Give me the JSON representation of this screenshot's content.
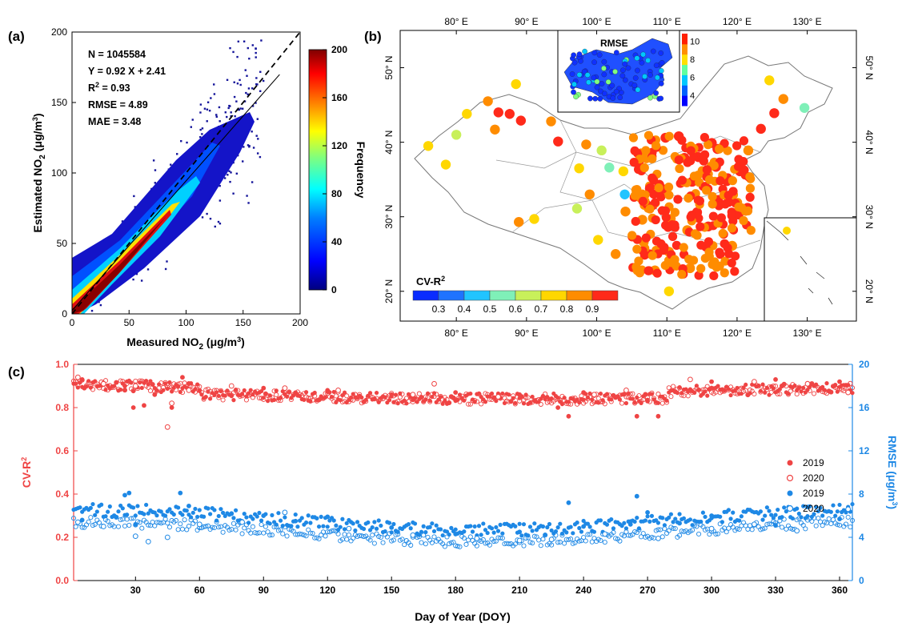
{
  "chart_data": [
    {
      "panel": "(a)",
      "type": "heatmap",
      "xlabel": "Measured NO2 (μg/m3)",
      "ylabel": "Estimated NO2 (μg/m3)",
      "xlim": [
        0,
        200
      ],
      "ylim": [
        0,
        200
      ],
      "xticks": [
        "0",
        "50",
        "100",
        "150",
        "200"
      ],
      "yticks": [
        "0",
        "50",
        "100",
        "150",
        "200"
      ],
      "stats": [
        "N = 1045584",
        "Y = 0.92 X + 2.41",
        "R2 = 0.93",
        "RMSE = 4.89",
        "MAE = 3.48"
      ],
      "fit_line": {
        "slope": 0.92,
        "intercept": 2.41,
        "x_range": [
          0,
          182
        ]
      },
      "identity_line": {
        "slope": 1,
        "intercept": 0
      },
      "colorbar": {
        "label": "Frequency",
        "range": [
          0,
          200
        ],
        "ticks": [
          "0",
          "40",
          "80",
          "120",
          "160",
          "200"
        ],
        "colormap": [
          "#00007f",
          "#0000ff",
          "#007fff",
          "#00ffff",
          "#7fff7f",
          "#ffff00",
          "#ff7f00",
          "#ff0000",
          "#7f0000"
        ]
      }
    },
    {
      "panel": "(b)",
      "type": "scatter",
      "title": "CV-R2",
      "inset_title": "RMSE",
      "xticks": [
        "80° E",
        "90° E",
        "100° E",
        "110° E",
        "120° E",
        "130° E"
      ],
      "yticks": [
        "20° N",
        "30° N",
        "40° N",
        "50° N"
      ],
      "legend_ticks": [
        "0.3",
        "0.4",
        "0.5",
        "0.6",
        "0.7",
        "0.8",
        "0.9"
      ],
      "legend_colors": [
        "#0a2cff",
        "#1f73ff",
        "#21c4ff",
        "#7ff0b8",
        "#c8f05a",
        "#ffd700",
        "#ff8c00",
        "#ff2a1a"
      ],
      "inset_colorbar_ticks": [
        "4",
        "6",
        "8",
        "10"
      ],
      "inset_colorbar_colors": [
        "#0000ff",
        "#0060ff",
        "#00c8ff",
        "#60ffa0",
        "#ffe000",
        "#ff9000",
        "#ff2000"
      ],
      "points": [
        {
          "lon": 76.0,
          "lat": 39.5,
          "v": 0.78
        },
        {
          "lon": 78.5,
          "lat": 37.0,
          "v": 0.75
        },
        {
          "lon": 80.0,
          "lat": 41.0,
          "v": 0.66
        },
        {
          "lon": 81.5,
          "lat": 43.8,
          "v": 0.78
        },
        {
          "lon": 84.5,
          "lat": 45.5,
          "v": 0.82
        },
        {
          "lon": 86.0,
          "lat": 44.0,
          "v": 0.93
        },
        {
          "lon": 87.6,
          "lat": 43.8,
          "v": 0.95
        },
        {
          "lon": 88.5,
          "lat": 47.8,
          "v": 0.78
        },
        {
          "lon": 89.2,
          "lat": 42.9,
          "v": 0.95
        },
        {
          "lon": 85.5,
          "lat": 41.7,
          "v": 0.8
        },
        {
          "lon": 93.5,
          "lat": 42.8,
          "v": 0.82
        },
        {
          "lon": 94.5,
          "lat": 40.1,
          "v": 0.88
        },
        {
          "lon": 98.5,
          "lat": 39.7,
          "v": 0.82
        },
        {
          "lon": 97.5,
          "lat": 36.5,
          "v": 0.75
        },
        {
          "lon": 101.8,
          "lat": 36.6,
          "v": 0.6
        },
        {
          "lon": 103.8,
          "lat": 36.1,
          "v": 0.72
        },
        {
          "lon": 106.3,
          "lat": 38.5,
          "v": 0.85
        },
        {
          "lon": 111.7,
          "lat": 40.8,
          "v": 0.95
        },
        {
          "lon": 109.8,
          "lat": 40.6,
          "v": 0.9
        },
        {
          "lon": 116.4,
          "lat": 39.9,
          "v": 0.96
        },
        {
          "lon": 117.2,
          "lat": 39.1,
          "v": 0.95
        },
        {
          "lon": 114.5,
          "lat": 38.0,
          "v": 0.95
        },
        {
          "lon": 112.5,
          "lat": 37.9,
          "v": 0.92
        },
        {
          "lon": 117.0,
          "lat": 36.7,
          "v": 0.95
        },
        {
          "lon": 120.4,
          "lat": 36.1,
          "v": 0.9
        },
        {
          "lon": 113.6,
          "lat": 34.7,
          "v": 0.95
        },
        {
          "lon": 108.9,
          "lat": 34.3,
          "v": 0.92
        },
        {
          "lon": 118.8,
          "lat": 32.0,
          "v": 0.92
        },
        {
          "lon": 121.5,
          "lat": 31.2,
          "v": 0.9
        },
        {
          "lon": 120.2,
          "lat": 30.3,
          "v": 0.92
        },
        {
          "lon": 117.3,
          "lat": 31.8,
          "v": 0.92
        },
        {
          "lon": 114.3,
          "lat": 30.6,
          "v": 0.9
        },
        {
          "lon": 112.9,
          "lat": 28.2,
          "v": 0.85
        },
        {
          "lon": 115.9,
          "lat": 28.7,
          "v": 0.88
        },
        {
          "lon": 119.3,
          "lat": 26.1,
          "v": 0.85
        },
        {
          "lon": 113.3,
          "lat": 23.1,
          "v": 0.85
        },
        {
          "lon": 110.3,
          "lat": 25.3,
          "v": 0.82
        },
        {
          "lon": 108.3,
          "lat": 22.8,
          "v": 0.8
        },
        {
          "lon": 106.7,
          "lat": 26.6,
          "v": 0.82
        },
        {
          "lon": 102.7,
          "lat": 25.0,
          "v": 0.8
        },
        {
          "lon": 104.1,
          "lat": 30.7,
          "v": 0.85
        },
        {
          "lon": 106.5,
          "lat": 29.6,
          "v": 0.85
        },
        {
          "lon": 91.1,
          "lat": 29.7,
          "v": 0.7
        },
        {
          "lon": 88.9,
          "lat": 29.3,
          "v": 0.8
        },
        {
          "lon": 97.2,
          "lat": 31.1,
          "v": 0.62
        },
        {
          "lon": 100.2,
          "lat": 26.9,
          "v": 0.75
        },
        {
          "lon": 123.4,
          "lat": 41.8,
          "v": 0.92
        },
        {
          "lon": 125.3,
          "lat": 43.9,
          "v": 0.88
        },
        {
          "lon": 126.6,
          "lat": 45.8,
          "v": 0.85
        },
        {
          "lon": 129.6,
          "lat": 44.6,
          "v": 0.55
        },
        {
          "lon": 124.6,
          "lat": 48.3,
          "v": 0.75
        },
        {
          "lon": 121.6,
          "lat": 38.9,
          "v": 0.82
        },
        {
          "lon": 110.3,
          "lat": 20.0,
          "v": 0.75
        },
        {
          "lon": 104.0,
          "lat": 33.0,
          "v": 0.5
        },
        {
          "lon": 99.0,
          "lat": 33.0,
          "v": 0.82
        },
        {
          "lon": 100.7,
          "lat": 38.9,
          "v": 0.65
        }
      ]
    },
    {
      "panel": "(c)",
      "type": "scatter",
      "xlabel": "Day of Year (DOY)",
      "ylabel": "CV-R2",
      "ylabel_right": "RMSE (μg/m3)",
      "xlim": [
        1,
        366
      ],
      "ylim": [
        0,
        1.0
      ],
      "ylim_right": [
        0,
        20
      ],
      "xticks": [
        "30",
        "60",
        "90",
        "120",
        "150",
        "180",
        "210",
        "240",
        "270",
        "300",
        "330",
        "360"
      ],
      "yticks": [
        "0.0",
        "0.2",
        "0.4",
        "0.6",
        "0.8",
        "1.0"
      ],
      "yticks_right": [
        "0",
        "4",
        "8",
        "12",
        "16",
        "20"
      ],
      "series": [
        {
          "name": "2019",
          "metric": "CV-R2",
          "marker": "filled",
          "color": "#ef4444",
          "x": [
            5,
            25,
            29,
            34,
            39,
            47,
            52,
            60,
            90,
            120,
            150,
            180,
            210,
            228,
            233,
            240,
            265,
            270,
            275,
            300,
            330,
            360
          ],
          "y": [
            0.93,
            0.9,
            0.8,
            0.81,
            0.86,
            0.8,
            0.94,
            0.88,
            0.89,
            0.88,
            0.86,
            0.87,
            0.86,
            0.8,
            0.76,
            0.87,
            0.76,
            0.83,
            0.76,
            0.92,
            0.93,
            0.92
          ]
        },
        {
          "name": "2020",
          "metric": "CV-R2",
          "marker": "open",
          "color": "#ef4444",
          "x": [
            3,
            15,
            30,
            45,
            47,
            55,
            75,
            100,
            125,
            160,
            170,
            200,
            245,
            260,
            290,
            320,
            345,
            364
          ],
          "y": [
            0.94,
            0.91,
            0.9,
            0.71,
            0.82,
            0.88,
            0.9,
            0.89,
            0.88,
            0.86,
            0.91,
            0.85,
            0.86,
            0.88,
            0.93,
            0.92,
            0.91,
            0.87
          ]
        },
        {
          "name": "2019",
          "metric": "RMSE",
          "marker": "filled",
          "color": "#1e88e5",
          "x": [
            5,
            20,
            25,
            27,
            30,
            51,
            55,
            75,
            90,
            105,
            120,
            150,
            180,
            210,
            233,
            240,
            262,
            265,
            270,
            285,
            300,
            330,
            345,
            360
          ],
          "y": [
            5.6,
            6.0,
            7.9,
            8.1,
            5.2,
            8.1,
            6.9,
            6.2,
            6.0,
            5.5,
            5.9,
            4.9,
            4.3,
            4.5,
            7.2,
            5.0,
            5.2,
            7.8,
            6.3,
            5.3,
            6.0,
            5.1,
            6.8,
            5.7
          ]
        },
        {
          "name": "2020",
          "metric": "RMSE",
          "marker": "open",
          "color": "#1e88e5",
          "x": [
            3,
            15,
            30,
            36,
            45,
            60,
            80,
            100,
            130,
            160,
            190,
            210,
            225,
            250,
            275,
            300,
            320,
            340,
            364
          ],
          "y": [
            5.4,
            5.0,
            4.1,
            3.6,
            4.0,
            5.2,
            5.4,
            6.3,
            4.8,
            4.2,
            3.9,
            3.7,
            3.8,
            4.3,
            3.9,
            4.8,
            5.2,
            4.6,
            6.6
          ]
        }
      ]
    }
  ]
}
